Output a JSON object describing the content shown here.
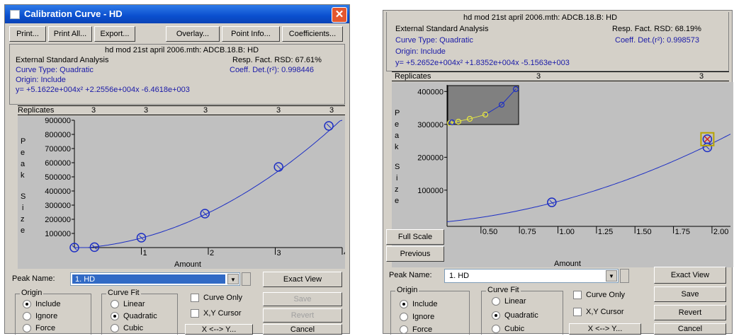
{
  "left": {
    "window_title": "Calibration Curve - HD",
    "toolbar": [
      "Print...",
      "Print All...",
      "Export...",
      "Overlay...",
      "Point Info...",
      "Coefficients..."
    ],
    "info": {
      "method": "hd mod 21st april 2006.mth:  ADCB.18.B: HD",
      "analysis": "External Standard Analysis",
      "resp_fact": "Resp. Fact. RSD:  67.61%",
      "curve_type": "Curve Type:  Quadratic",
      "coeff_det": "Coeff. Det.(r²):  0.998446",
      "origin": "Origin:  Include",
      "equation": "y=  +5.1622e+004x² +2.2556e+004x -6.4618e+003"
    },
    "replicates": {
      "label": "Replicates",
      "counts": [
        "3",
        "3",
        "3",
        "3",
        "3"
      ]
    },
    "y_letters": [
      "P",
      "e",
      "a",
      "k",
      "",
      "S",
      "i",
      "z",
      "e"
    ],
    "chart_data": {
      "type": "scatter",
      "title": "",
      "xlabel": "Amount",
      "ylabel": "Peak Size",
      "xlim": [
        0,
        4
      ],
      "ylim": [
        0,
        900000
      ],
      "x_ticks": [
        1,
        2,
        3,
        4
      ],
      "x_tick_labels": [
        "1",
        "2",
        "3",
        "4"
      ],
      "y_ticks": [
        100000,
        200000,
        300000,
        400000,
        500000,
        600000,
        700000,
        800000,
        900000
      ],
      "y_tick_labels": [
        "100000",
        "200000",
        "300000",
        "400000",
        "500000",
        "600000",
        "700000",
        "800000",
        "900000"
      ],
      "series": [
        {
          "values_x": [
            0,
            0.3,
            1.0,
            1.95,
            3.05,
            3.8
          ],
          "values_y": [
            0,
            3000,
            70000,
            240000,
            570000,
            860000
          ]
        }
      ],
      "fit": {
        "a": 51622,
        "b": 22556,
        "c": -6461.8
      }
    },
    "bottom": {
      "peak_label": "Peak Name:",
      "peak_value": "1. HD",
      "exact_view": "Exact View",
      "origin_label": "Origin",
      "origin_options": [
        "Include",
        "Ignore",
        "Force"
      ],
      "origin_selected": 0,
      "fit_label": "Curve Fit",
      "fit_options": [
        "Linear",
        "Quadratic",
        "Cubic"
      ],
      "fit_selected": 1,
      "curve_only": "Curve Only",
      "xy_cursor": "X,Y Cursor",
      "save": "Save",
      "revert": "Revert",
      "swap": "X <--> Y...",
      "cancel": "Cancel"
    }
  },
  "right": {
    "info": {
      "method": "hd mod 21st april 2006.mth:  ADCB.18.B: HD",
      "analysis": "External Standard Analysis",
      "resp_fact": "Resp. Fact. RSD:  68.19%",
      "curve_type": "Curve Type:  Quadratic",
      "coeff_det": "Coeff. Det.(r²):  0.998573",
      "origin": "Origin:  Include",
      "equation": "y=  +5.2652e+004x² +1.8352e+004x -5.1563e+003"
    },
    "replicates": {
      "label": "Replicates",
      "counts": [
        "3",
        "3"
      ]
    },
    "y_letters": [
      "P",
      "e",
      "a",
      "k",
      "",
      "S",
      "i",
      "z",
      "e"
    ],
    "chart_data": {
      "type": "scatter",
      "title": "",
      "xlabel": "Amount",
      "ylabel": "Peak Size",
      "xlim": [
        0.28,
        2.12
      ],
      "ylim": [
        -10000,
        420000
      ],
      "x_ticks": [
        0.5,
        0.75,
        1.0,
        1.25,
        1.5,
        1.75,
        2.0
      ],
      "x_tick_labels": [
        "0.50",
        "0.75",
        "1.00",
        "1.25",
        "1.50",
        "1.75",
        "2.00"
      ],
      "y_ticks": [
        100000,
        200000,
        300000,
        400000
      ],
      "y_tick_labels": [
        "100000",
        "200000",
        "300000",
        "400000"
      ],
      "series": [
        {
          "values_x": [
            0.96,
            1.97,
            1.97
          ],
          "values_y": [
            63000,
            230000,
            255000
          ]
        }
      ],
      "fit": {
        "a": 52652,
        "b": 18352,
        "c": -5156.3
      }
    },
    "full_scale": "Full Scale",
    "previous": "Previous",
    "bottom": {
      "peak_label": "Peak Name:",
      "peak_value": "1. HD",
      "exact_view": "Exact View",
      "origin_label": "Origin",
      "origin_options": [
        "Include",
        "Ignore",
        "Force"
      ],
      "origin_selected": 0,
      "fit_label": "Curve Fit",
      "fit_options": [
        "Linear",
        "Quadratic",
        "Cubic"
      ],
      "fit_selected": 1,
      "curve_only": "Curve Only",
      "xy_cursor": "X,Y Cursor",
      "save": "Save",
      "revert": "Revert",
      "swap": "X <--> Y...",
      "cancel": "Cancel"
    }
  }
}
